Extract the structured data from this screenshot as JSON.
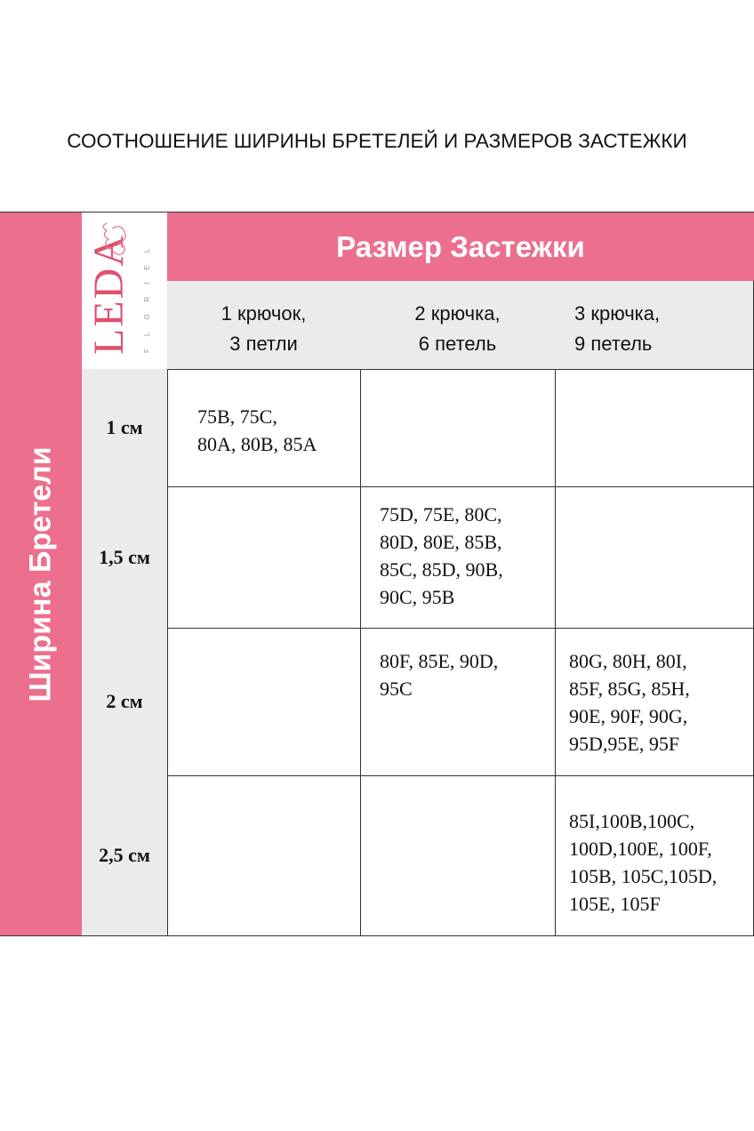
{
  "title": "СООТНОШЕНИЕ ШИРИНЫ БРЕТЕЛЕЙ И РАЗМЕРОВ ЗАСТЕЖКИ",
  "side_label": "Ширина Бретели",
  "logo": {
    "text": "LEDA",
    "subtext": "FLORIEL"
  },
  "header": "Размер Застежки",
  "columns": [
    "1 крючок,\n3 петли",
    "2 крючка,\n6 петель",
    "3 крючка,\n9 петель"
  ],
  "rows": [
    {
      "label": "1 см",
      "cells": [
        "75B, 75C,\n80A, 80B, 85A",
        "",
        ""
      ]
    },
    {
      "label": "1,5 см",
      "cells": [
        "",
        "75D, 75E, 80C,\n80D, 80E, 85B,\n85C, 85D, 90B,\n90C, 95B",
        ""
      ]
    },
    {
      "label": "2 см",
      "cells": [
        "",
        "80F, 85E, 90D,\n95C",
        "80G, 80H, 80I,\n85F, 85G, 85H,\n90E, 90F, 90G,\n95D,95E, 95F"
      ]
    },
    {
      "label": "2,5 см",
      "cells": [
        "",
        "",
        "85I,100B,100C,\n100D,100E, 100F,\n105B, 105C,105D,\n105E, 105F"
      ]
    }
  ],
  "colors": {
    "pink": "#ec6f8e",
    "gray": "#ebebeb"
  }
}
